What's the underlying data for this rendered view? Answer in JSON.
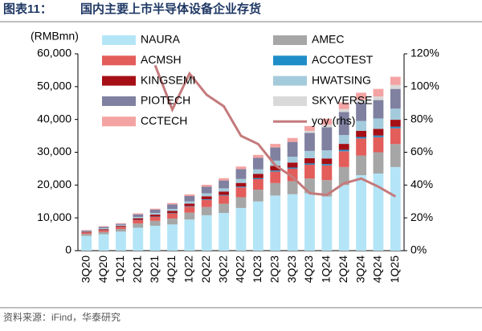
{
  "chart_data": {
    "type": "bar",
    "stacked": true,
    "figure_label": "图表11：",
    "title": "国内主要上市半导体设备企业存货",
    "y_unit_label": "(RMBmn)",
    "source": "资料来源：iFind，华泰研究",
    "categories": [
      "3Q20",
      "4Q20",
      "1Q21",
      "2Q21",
      "3Q21",
      "4Q21",
      "1Q22",
      "2Q22",
      "3Q22",
      "4Q22",
      "1Q23",
      "2Q23",
      "3Q23",
      "4Q23",
      "1Q24",
      "2Q24",
      "3Q24",
      "4Q24",
      "1Q25"
    ],
    "series": [
      {
        "name": "NAURA",
        "color": "#b3e5f7",
        "values": [
          4500,
          5000,
          5800,
          7000,
          7600,
          8000,
          9500,
          10800,
          11500,
          13000,
          15000,
          16800,
          17200,
          17500,
          16500,
          20000,
          23000,
          23500,
          25500
        ]
      },
      {
        "name": "AMEC",
        "color": "#a6a6a6",
        "values": [
          600,
          700,
          800,
          1300,
          1500,
          1800,
          2100,
          2500,
          2800,
          3300,
          3600,
          3800,
          4000,
          4500,
          5000,
          5500,
          6000,
          6500,
          7000
        ]
      },
      {
        "name": "ACMSH",
        "color": "#e35d5b",
        "values": [
          400,
          500,
          600,
          1000,
          1200,
          1500,
          1800,
          2200,
          2500,
          3000,
          3200,
          3500,
          3800,
          4200,
          4500,
          4800,
          5200,
          4600,
          4800
        ]
      },
      {
        "name": "ACCOTEST",
        "color": "#1f8ec8",
        "values": [
          50,
          60,
          70,
          90,
          100,
          120,
          150,
          180,
          200,
          250,
          300,
          350,
          350,
          400,
          400,
          450,
          450,
          500,
          500
        ]
      },
      {
        "name": "KINGSEMI",
        "color": "#a50f15",
        "values": [
          200,
          300,
          300,
          500,
          600,
          700,
          800,
          900,
          1000,
          1100,
          1300,
          1400,
          1500,
          1600,
          1700,
          1800,
          1900,
          2000,
          2100
        ]
      },
      {
        "name": "HWATSING",
        "color": "#a4cbdc",
        "values": [
          200,
          300,
          300,
          400,
          500,
          600,
          700,
          900,
          1000,
          1200,
          1400,
          1600,
          1800,
          2200,
          2500,
          2700,
          3000,
          3200,
          3400
        ]
      },
      {
        "name": "PIOTECH",
        "color": "#8080a0",
        "values": [
          200,
          400,
          300,
          800,
          1000,
          1400,
          1600,
          2000,
          2400,
          3000,
          3500,
          4000,
          4500,
          5500,
          7000,
          7000,
          5500,
          5600,
          6000
        ]
      },
      {
        "name": "SKYVERSE",
        "color": "#d9d9d9",
        "values": [
          0,
          0,
          0,
          0,
          0,
          0,
          0,
          0,
          0,
          0,
          0,
          0,
          0,
          600,
          800,
          900,
          1000,
          1100,
          1200
        ]
      },
      {
        "name": "CCTECH",
        "color": "#f4a3a3",
        "values": [
          150,
          200,
          200,
          300,
          300,
          400,
          500,
          600,
          700,
          800,
          900,
          1100,
          1200,
          1500,
          1800,
          2000,
          2100,
          2300,
          2500
        ]
      },
      {
        "name": "yoy (rhs)",
        "type": "line",
        "axis": "y2",
        "color": "#c47a7c",
        "values": [
          null,
          null,
          null,
          null,
          113,
          86,
          108,
          95,
          88,
          70,
          65,
          52,
          45,
          35,
          34,
          41,
          44,
          39,
          33
        ]
      }
    ],
    "ylim": [
      0,
      60000
    ],
    "yticks": [
      0,
      {
        "value": 10000,
        "label": "10,000"
      },
      {
        "value": 20000,
        "label": "20,000"
      },
      {
        "value": 30000,
        "label": "30,000"
      },
      {
        "value": 40000,
        "label": "40,000"
      },
      {
        "value": 50000,
        "label": "50,000"
      },
      {
        "value": 60000,
        "label": "60,000"
      }
    ],
    "y2lim": [
      0,
      120
    ],
    "y2ticks": [
      {
        "value": 0,
        "label": "0%"
      },
      {
        "value": 20,
        "label": "20%"
      },
      {
        "value": 40,
        "label": "40%"
      },
      {
        "value": 60,
        "label": "60%"
      },
      {
        "value": 80,
        "label": "80%"
      },
      {
        "value": 100,
        "label": "100%"
      },
      {
        "value": 120,
        "label": "120%"
      }
    ],
    "grid": false,
    "legend": "top"
  }
}
